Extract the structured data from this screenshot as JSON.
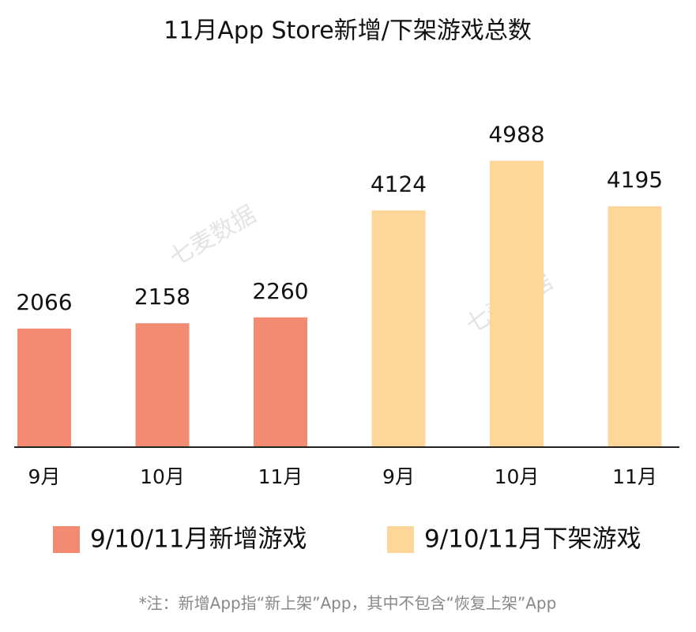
{
  "chart_data": {
    "type": "bar",
    "title": "11月App Store新增/下架游戏总数",
    "categories": [
      "9月",
      "10月",
      "11月",
      "9月",
      "10月",
      "11月"
    ],
    "series": [
      {
        "name": "9/10/11月新增游戏",
        "color": "#f28b72",
        "values": [
          2066,
          2158,
          2260,
          null,
          null,
          null
        ]
      },
      {
        "name": "9/10/11月下架游戏",
        "color": "#fdd699",
        "values": [
          null,
          null,
          null,
          4124,
          4988,
          4195
        ]
      }
    ],
    "ylim": [
      0,
      6000
    ],
    "watermark": "七麦数据",
    "footnote": "*注：新增App指“新上架”App，其中不包含“恢复上架”App"
  }
}
